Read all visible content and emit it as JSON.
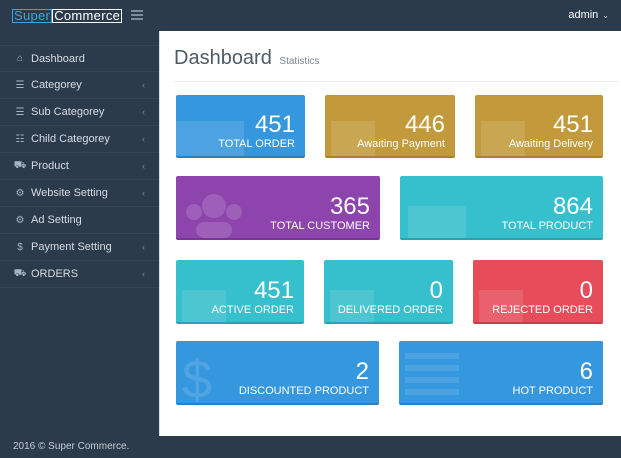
{
  "brand": {
    "part1": "Super",
    "part2": "Commerce"
  },
  "header": {
    "user_label": "admin",
    "caret": "⌄"
  },
  "sidebar": {
    "items": [
      {
        "label": "Dashboard",
        "icon": "home-icon",
        "glyph": "⌂",
        "chevron": ""
      },
      {
        "label": "Categorey",
        "icon": "list-icon",
        "glyph": "☰",
        "chevron": "‹"
      },
      {
        "label": "Sub Categorey",
        "icon": "list-icon",
        "glyph": "☰",
        "chevron": "‹"
      },
      {
        "label": "Child Categorey",
        "icon": "list-ul-icon",
        "glyph": "☷",
        "chevron": "‹"
      },
      {
        "label": "Product",
        "icon": "cart-icon",
        "glyph": "⛟",
        "chevron": "‹"
      },
      {
        "label": "Website Setting",
        "icon": "cogs-icon",
        "glyph": "⚙",
        "chevron": "‹"
      },
      {
        "label": "Ad Setting",
        "icon": "cogs-icon",
        "glyph": "⚙",
        "chevron": ""
      },
      {
        "label": "Payment Setting",
        "icon": "dollar-icon",
        "glyph": "$",
        "chevron": "‹"
      },
      {
        "label": "ORDERS",
        "icon": "cart-icon",
        "glyph": "⛟",
        "chevron": "‹"
      }
    ]
  },
  "page": {
    "title": "Dashboard",
    "subtitle": "Statistics"
  },
  "cards": {
    "total_order": {
      "value": "451",
      "label": "TOTAL ORDER",
      "color": "#3597dd"
    },
    "awaiting_payment": {
      "value": "446",
      "label": "Awaiting Payment",
      "color": "#c29a3b"
    },
    "awaiting_delivery": {
      "value": "451",
      "label": "Awaiting Delivery",
      "color": "#c29a3b"
    },
    "total_customer": {
      "value": "365",
      "label": "TOTAL CUSTOMER",
      "color": "#8e44ad"
    },
    "total_product": {
      "value": "864",
      "label": "TOTAL PRODUCT",
      "color": "#36bfcc"
    },
    "active_order": {
      "value": "451",
      "label": "ACTIVE ORDER",
      "color": "#36bfcc"
    },
    "delivered_order": {
      "value": "0",
      "label": "DELIVERED ORDER",
      "color": "#36bfcc"
    },
    "rejected_order": {
      "value": "0",
      "label": "REJECTED ORDER",
      "color": "#e74c5a"
    },
    "discounted_product": {
      "value": "2",
      "label": "DISCOUNTED PRODUCT",
      "color": "#3597dd"
    },
    "hot_product": {
      "value": "6",
      "label": "HOT PRODUCT",
      "color": "#3597dd"
    }
  },
  "footer": {
    "text": "2016 © Super Commerce."
  }
}
